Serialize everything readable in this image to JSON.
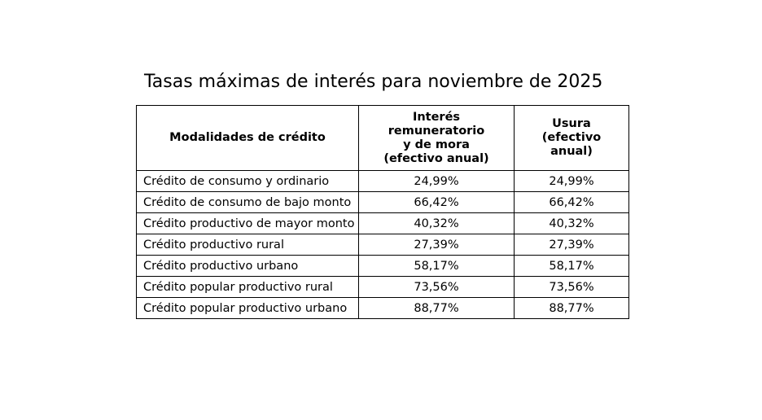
{
  "title": "Tasas máximas de interés para noviembre de 2025",
  "table": {
    "header": [
      "Modalidades de crédito",
      "Interés\nremuneratorio\ny de mora\n(efectivo anual)",
      "Usura\n(efectivo\nanual)"
    ],
    "rows": [
      [
        "Crédito de consumo y ordinario",
        "24,99%",
        "24,99%"
      ],
      [
        "Crédito de consumo de bajo monto",
        "66,42%",
        "66,42%"
      ],
      [
        "Crédito productivo de mayor monto",
        "40,32%",
        "40,32%"
      ],
      [
        "Crédito productivo rural",
        "27,39%",
        "27,39%"
      ],
      [
        "Crédito productivo urbano",
        "58,17%",
        "58,17%"
      ],
      [
        "Crédito popular productivo rural",
        "73,56%",
        "73,56%"
      ],
      [
        "Crédito popular productivo urbano",
        "88,77%",
        "88,77%"
      ]
    ]
  }
}
